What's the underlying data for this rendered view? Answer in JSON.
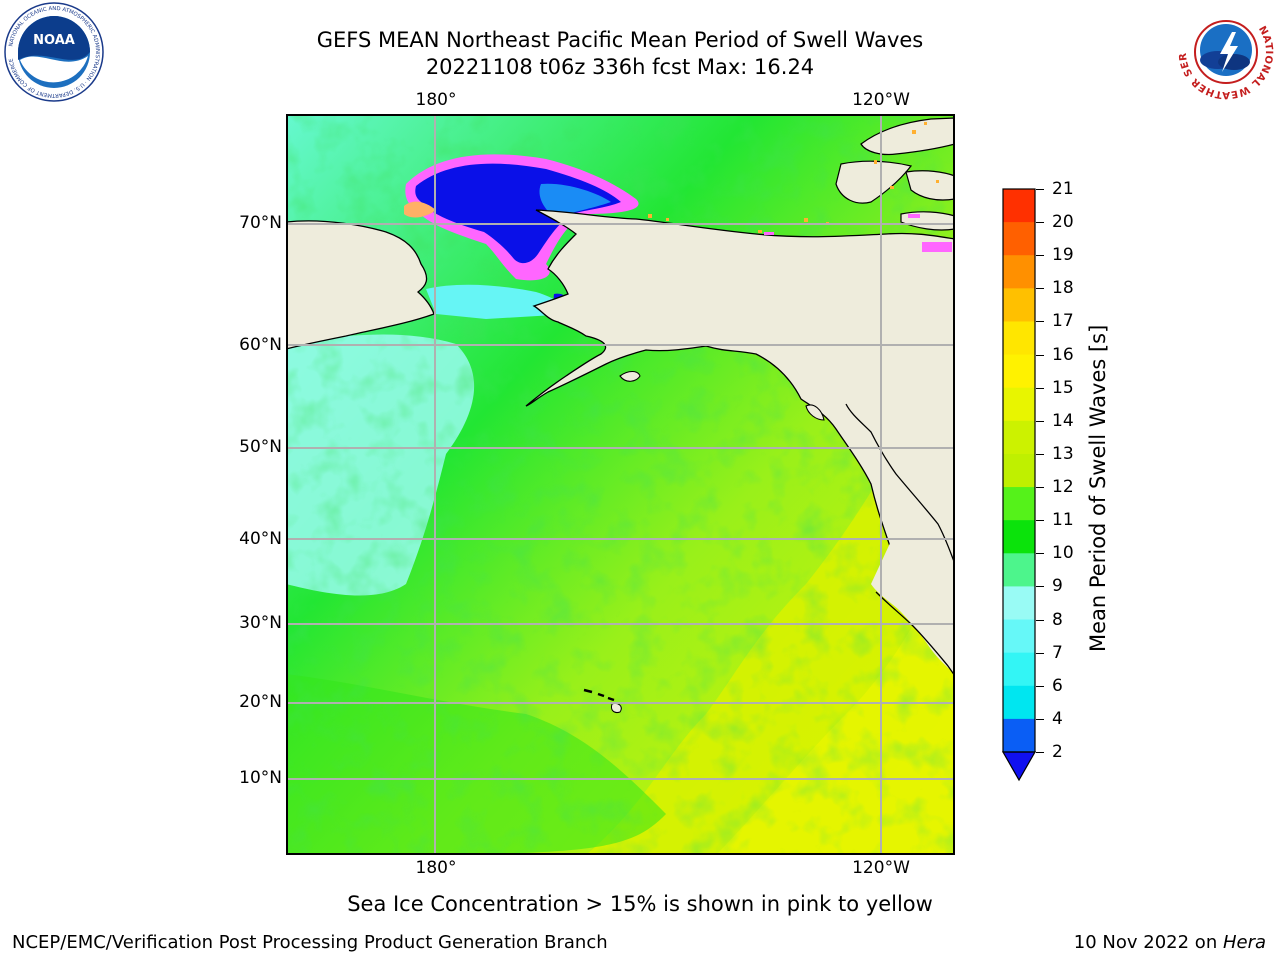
{
  "title": {
    "line1": "GEFS MEAN Northeast Pacific Mean Period of Swell Waves",
    "line2": "20221108 t06z 336h fcst   Max: 16.24"
  },
  "logos": {
    "left": {
      "name": "noaa-logo",
      "text": "NOAA",
      "ring_text": "NATIONAL OCEANIC AND ATMOSPHERIC ADMINISTRATION · U.S. DEPARTMENT OF COMMERCE"
    },
    "right": {
      "name": "nws-logo",
      "ring_text": "NATIONAL WEATHER SERVICE"
    }
  },
  "map": {
    "region": "Northeast Pacific",
    "lon_labels_top": [
      "180°",
      "120°W"
    ],
    "lon_labels_bottom": [
      "180°",
      "120°W"
    ],
    "lat_labels": [
      "70°N",
      "60°N",
      "50°N",
      "40°N",
      "30°N",
      "20°N",
      "10°N"
    ],
    "gridlines": true,
    "land_color": "#eeecdc",
    "coastline_color": "#000000"
  },
  "colorbar": {
    "label": "Mean Period of Swell Waves [s]",
    "tick_labels": [
      "2",
      "4",
      "6",
      "7",
      "8",
      "9",
      "10",
      "11",
      "12",
      "13",
      "14",
      "15",
      "16",
      "17",
      "18",
      "19",
      "20",
      "21"
    ],
    "colors": [
      "#0a5ef5",
      "#00e6f0",
      "#33f5f5",
      "#66f8f8",
      "#99fbf5",
      "#4df58c",
      "#0be30b",
      "#55f21a",
      "#bff000",
      "#ccf200",
      "#e8f500",
      "#fff200",
      "#ffe600",
      "#ffc000",
      "#ff9000",
      "#ff6000",
      "#ff3000",
      "#ff0000"
    ],
    "extend_color": "#1010f0"
  },
  "note": "Sea Ice Concentration > 15% is shown in pink to yellow",
  "footer": {
    "left": "NCEP/EMC/Verification Post Processing Product Generation Branch",
    "right_prefix": "10 Nov 2022 on ",
    "right_italic": "Hera"
  }
}
